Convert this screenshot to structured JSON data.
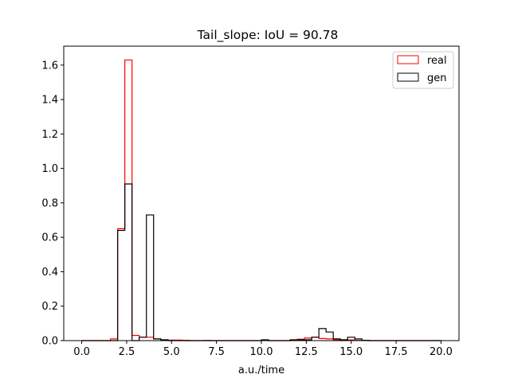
{
  "chart_data": {
    "type": "histogram-step",
    "title": "Tail_slope: IoU = 90.78",
    "xlabel": "a.u./time",
    "ylabel": "",
    "xlim": [
      -1.0,
      21.0
    ],
    "ylim": [
      0,
      1.71
    ],
    "xticks": [
      0.0,
      2.5,
      5.0,
      7.5,
      10.0,
      12.5,
      15.0,
      17.5,
      20.0
    ],
    "xtick_labels": [
      "0.0",
      "2.5",
      "5.0",
      "7.5",
      "10.0",
      "12.5",
      "15.0",
      "17.5",
      "20.0"
    ],
    "yticks": [
      0.0,
      0.2,
      0.4,
      0.6,
      0.8,
      1.0,
      1.2,
      1.4,
      1.6
    ],
    "ytick_labels": [
      "0.0",
      "0.2",
      "0.4",
      "0.6",
      "0.8",
      "1.0",
      "1.2",
      "1.4",
      "1.6"
    ],
    "bin_start": 0.0,
    "bin_width": 0.4,
    "legend_position": "top-right",
    "series": [
      {
        "name": "real",
        "color": "#ff0000",
        "values": [
          0,
          0,
          0,
          0,
          0.01,
          0.65,
          1.63,
          0.03,
          0.02,
          0.02,
          0.01,
          0.005,
          0.003,
          0.003,
          0.002,
          0,
          0,
          0.001,
          0,
          0,
          0,
          0,
          0,
          0,
          0,
          0.001,
          0,
          0,
          0,
          0.003,
          0.008,
          0.015,
          0.02,
          0.012,
          0.01,
          0.005,
          0.005,
          0.004,
          0.001,
          0.001,
          0,
          0,
          0,
          0,
          0,
          0,
          0,
          0,
          0,
          0
        ]
      },
      {
        "name": "gen",
        "color": "#000000",
        "values": [
          0,
          0,
          0,
          0,
          0,
          0.64,
          0.91,
          0,
          0.02,
          0.73,
          0.01,
          0.005,
          0,
          0,
          0,
          0,
          0,
          0,
          0,
          0,
          0,
          0,
          0,
          0,
          0,
          0.005,
          0,
          0,
          0,
          0.005,
          0.005,
          0.005,
          0.02,
          0.07,
          0.05,
          0.01,
          0.005,
          0.02,
          0.01,
          0.002,
          0,
          0,
          0,
          0,
          0,
          0,
          0,
          0,
          0,
          0
        ]
      }
    ]
  }
}
